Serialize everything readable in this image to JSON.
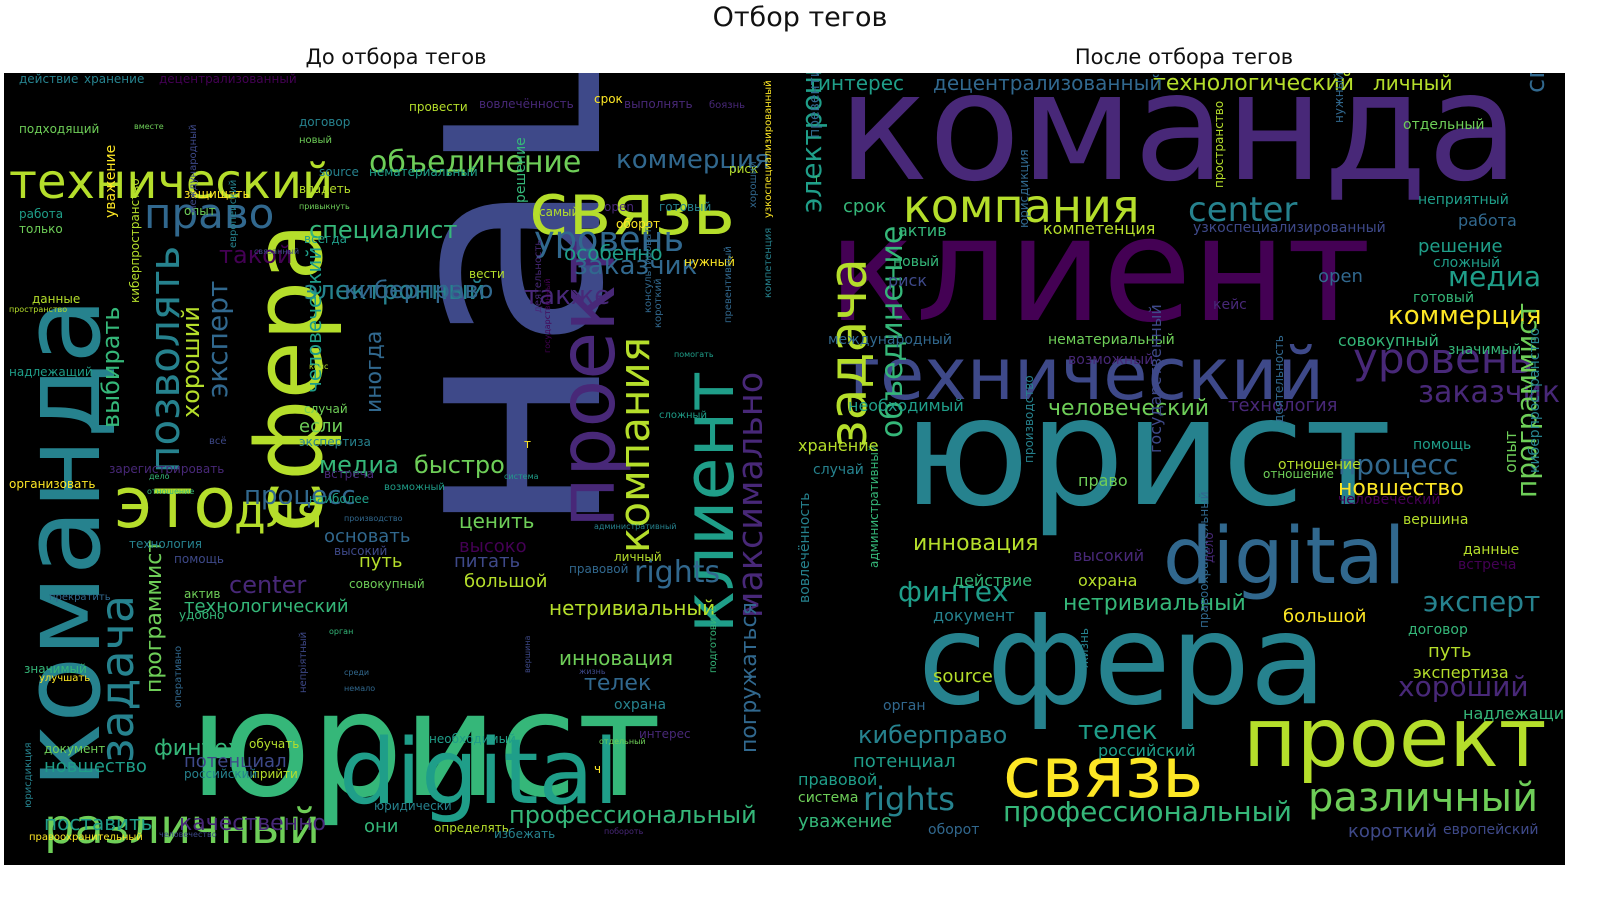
{
  "figure": {
    "title": "Отбор тегов"
  },
  "palette": [
    "#440154",
    "#482878",
    "#3e4989",
    "#31688e",
    "#26828e",
    "#1f9e89",
    "#35b779",
    "#6ece58",
    "#b5de2b",
    "#fde725"
  ],
  "panels": [
    {
      "title": "До отбора тегов",
      "words": [
        [
          "наш",
          2
        ],
        [
          "юрист",
          6
        ],
        [
          "команда",
          4
        ],
        [
          "сфера",
          8
        ],
        [
          "связь",
          8
        ],
        [
          "проект",
          1
        ],
        [
          "клиент",
          5
        ],
        [
          "это",
          8
        ],
        [
          "digital",
          5
        ],
        [
          "технический",
          8
        ],
        [
          "максимально",
          1
        ],
        [
          "компания",
          8
        ],
        [
          "различный",
          7
        ],
        [
          "задача",
          4
        ],
        [
          "право",
          3
        ],
        [
          "уровень",
          3
        ],
        [
          "объединение",
          7
        ],
        [
          "позволять",
          4
        ],
        [
          "для",
          8
        ],
        [
          "коммерция",
          3
        ],
        [
          "профессиональный",
          6
        ],
        [
          "rights",
          3
        ],
        [
          "процесс",
          3
        ],
        [
          "center",
          1
        ],
        [
          "специалист",
          6
        ],
        [
          "электронный",
          4
        ],
        [
          "киберправо",
          3
        ],
        [
          "заказчик",
          3
        ],
        [
          "также",
          1
        ],
        [
          "такой",
          0
        ],
        [
          "эксперт",
          3
        ],
        [
          "хороший",
          8
        ],
        [
          "выбирать",
          6
        ],
        [
          "программист",
          7
        ],
        [
          "финтех",
          6
        ],
        [
          "новшество",
          5
        ],
        [
          "поставить",
          5
        ],
        [
          "качественно",
          1
        ],
        [
          "потенциал",
          2
        ],
        [
          "технологический",
          6
        ],
        [
          "инновация",
          7
        ],
        [
          "телек",
          3
        ],
        [
          "погружаться",
          3
        ],
        [
          "нетривиальный",
          8
        ],
        [
          "медиа",
          6
        ],
        [
          "быстро",
          7
        ],
        [
          "ценить",
          7
        ],
        [
          "особенно",
          5
        ],
        [
          "иногда",
          3
        ],
        [
          "человеческий",
          5
        ],
        [
          "путь",
          8
        ],
        [
          "основать",
          3
        ],
        [
          "питать",
          2
        ],
        [
          "высоко",
          0
        ],
        [
          "большой",
          8
        ],
        [
          "если",
          7
        ],
        [
          "они",
          6
        ],
        [
          "охрана",
          4
        ],
        [
          "уважение",
          9
        ],
        [
          "киберпространство",
          8
        ],
        [
          "подходящий",
          7
        ],
        [
          "хранение",
          4
        ],
        [
          "действие",
          4
        ],
        [
          "децентрализованный",
          0
        ],
        [
          "вовлечённость",
          1
        ],
        [
          "выполнять",
          1
        ],
        [
          "боязнь",
          1
        ],
        [
          "договор",
          4
        ],
        [
          "провести",
          8
        ],
        [
          "срок",
          9
        ],
        [
          "нематериальный",
          5
        ],
        [
          "source",
          4
        ],
        [
          "риск",
          8
        ],
        [
          "готовый",
          4
        ],
        [
          "владеть",
          8
        ],
        [
          "защищать",
          9
        ],
        [
          "опыт",
          7
        ],
        [
          "самый",
          8
        ],
        [
          "open",
          1
        ],
        [
          "оборот",
          9
        ],
        [
          "всегда",
          5
        ],
        [
          "вести",
          8
        ],
        [
          "нужный",
          9
        ],
        [
          "решение",
          6
        ],
        [
          "международный",
          2
        ],
        [
          "европейский",
          4
        ],
        [
          "хороший",
          3
        ],
        [
          "превентивный",
          3
        ],
        [
          "компетенция",
          4
        ],
        [
          "государственный",
          0
        ],
        [
          "деятельность",
          1
        ],
        [
          "консультировать",
          3
        ],
        [
          "узкоспециализированный",
          9
        ],
        [
          "сложный",
          5
        ],
        [
          "помогать",
          5
        ],
        [
          "короткий",
          3
        ],
        [
          "надлежащий",
          5
        ],
        [
          "данные",
          8
        ],
        [
          "пространство",
          8
        ],
        [
          "работа",
          5
        ],
        [
          "только",
          7
        ],
        [
          "кейс",
          8
        ],
        [
          "случай",
          7
        ],
        [
          "экспертиза",
          4
        ],
        [
          "зарегистрировать",
          1
        ],
        [
          "организовать",
          9
        ],
        [
          "встреча",
          1
        ],
        [
          "система",
          5
        ],
        [
          "возможный",
          5
        ],
        [
          "административный",
          4
        ],
        [
          "наиболее",
          5
        ],
        [
          "технология",
          4
        ],
        [
          "помощь",
          2
        ],
        [
          "высокий",
          2
        ],
        [
          "производство",
          3
        ],
        [
          "личный",
          8
        ],
        [
          "правовой",
          3
        ],
        [
          "совокупный",
          7
        ],
        [
          "актив",
          7
        ],
        [
          "удобно",
          6
        ],
        [
          "прекратить",
          3
        ],
        [
          "орган",
          6
        ],
        [
          "значимый",
          6
        ],
        [
          "улучшать",
          9
        ],
        [
          "непріятный",
          2
        ],
        [
          "среди",
          3
        ],
        [
          "немало",
          3
        ],
        [
          "вершина",
          2
        ],
        [
          "жизнь",
          2
        ],
        [
          "подготовить",
          6
        ],
        [
          "обучать",
          8
        ],
        [
          "прийти",
          8
        ],
        [
          "необходимый",
          5
        ],
        [
          "интерес",
          1
        ],
        [
          "отдельный",
          7
        ],
        [
          "документ",
          7
        ],
        [
          "российский",
          4
        ],
        [
          "юридически",
          4
        ],
        [
          "определять",
          8
        ],
        [
          "избежать",
          4
        ],
        [
          "правоохранительный",
          9
        ],
        [
          "человечество",
          2
        ],
        [
          "побороть",
          1
        ],
        [
          "юрисдикция",
          4
        ],
        [
          "оперативно",
          3
        ],
        [
          "дело",
          6
        ],
        [
          "отношение",
          6
        ],
        [
          "вместе",
          7
        ],
        [
          "новый",
          7
        ],
        [
          "привыкнуть",
          7
        ],
        [
          "связанный",
          2
        ],
        [
          "всё",
          2
        ],
        [
          "т",
          9
        ],
        [
          "ч",
          9
        ]
      ]
    },
    {
      "title": "После отбора тегов",
      "words": [
        [
          "команда",
          1
        ],
        [
          "клиент",
          0
        ],
        [
          "юрист",
          4
        ],
        [
          "сфера",
          4
        ],
        [
          "технический",
          2
        ],
        [
          "проект",
          8
        ],
        [
          "digital",
          3
        ],
        [
          "связь",
          9
        ],
        [
          "задача",
          8
        ],
        [
          "различный",
          7
        ],
        [
          "компания",
          8
        ],
        [
          "уровень",
          1
        ],
        [
          "заказчик",
          1
        ],
        [
          "объединение",
          6
        ],
        [
          "center",
          4
        ],
        [
          "процесс",
          3
        ],
        [
          "новшество",
          9
        ],
        [
          "коммерция",
          9
        ],
        [
          "эксперт",
          4
        ],
        [
          "профессиональный",
          6
        ],
        [
          "медиа",
          5
        ],
        [
          "электронный",
          5
        ],
        [
          "специалист",
          3
        ],
        [
          "программист",
          7
        ],
        [
          "киберправо",
          4
        ],
        [
          "rights",
          4
        ],
        [
          "хороший",
          1
        ],
        [
          "телек",
          5
        ],
        [
          "инновация",
          8
        ],
        [
          "финтех",
          5
        ],
        [
          "нетривиальный",
          6
        ],
        [
          "человеческий",
          7
        ],
        [
          "технологический",
          8
        ],
        [
          "децентрализованный",
          3
        ],
        [
          "интерес",
          5
        ],
        [
          "личный",
          8
        ],
        [
          "отдельный",
          7
        ],
        [
          "неприятный",
          5
        ],
        [
          "работа",
          3
        ],
        [
          "решение",
          5
        ],
        [
          "сложный",
          5
        ],
        [
          "готовый",
          6
        ],
        [
          "значимый",
          6
        ],
        [
          "совокупный",
          6
        ],
        [
          "необходимый",
          5
        ],
        [
          "технология",
          1
        ],
        [
          "компетенция",
          8
        ],
        [
          "узкоспециализированный",
          2
        ],
        [
          "open",
          3
        ],
        [
          "кейс",
          1
        ],
        [
          "возможный",
          1
        ],
        [
          "нематериальный",
          7
        ],
        [
          "юрисдикция",
          3
        ],
        [
          "новый",
          6
        ],
        [
          "риск",
          2
        ],
        [
          "актив",
          6
        ],
        [
          "срок",
          6
        ],
        [
          "превентивный",
          3
        ],
        [
          "международный",
          3
        ],
        [
          "т",
          6
        ],
        [
          "пространство",
          8
        ],
        [
          "нужный",
          3
        ],
        [
          "помощь",
          5
        ],
        [
          "опыт",
          7
        ],
        [
          "киберпространство",
          4
        ],
        [
          "данные",
          8
        ],
        [
          "встреча",
          0
        ],
        [
          "вершина",
          8
        ],
        [
          "человеческий",
          0
        ],
        [
          "отношение",
          8
        ],
        [
          "деятельность",
          3
        ],
        [
          "государственный",
          2
        ],
        [
          "высокий",
          1
        ],
        [
          "административный",
          6
        ],
        [
          "производство",
          4
        ],
        [
          "дело",
          1
        ],
        [
          "действие",
          6
        ],
        [
          "охрана",
          8
        ],
        [
          "хранение",
          8
        ],
        [
          "случай",
          4
        ],
        [
          "право",
          7
        ],
        [
          "вовлечённость",
          4
        ],
        [
          "договор",
          6
        ],
        [
          "путь",
          8
        ],
        [
          "экспертиза",
          8
        ],
        [
          "надлежащий",
          6
        ],
        [
          "правоохранительный",
          3
        ],
        [
          "жизнь",
          4
        ],
        [
          "российский",
          5
        ],
        [
          "документ",
          4
        ],
        [
          "потенциал",
          5
        ],
        [
          "орган",
          3
        ],
        [
          "правовой",
          5
        ],
        [
          "система",
          7
        ],
        [
          "уважение",
          6
        ],
        [
          "оборот",
          3
        ],
        [
          "короткий",
          2
        ],
        [
          "европейский",
          2
        ],
        [
          "source",
          8
        ],
        [
          "большой",
          9
        ],
        [
          "отношение",
          7
        ]
      ]
    }
  ]
}
